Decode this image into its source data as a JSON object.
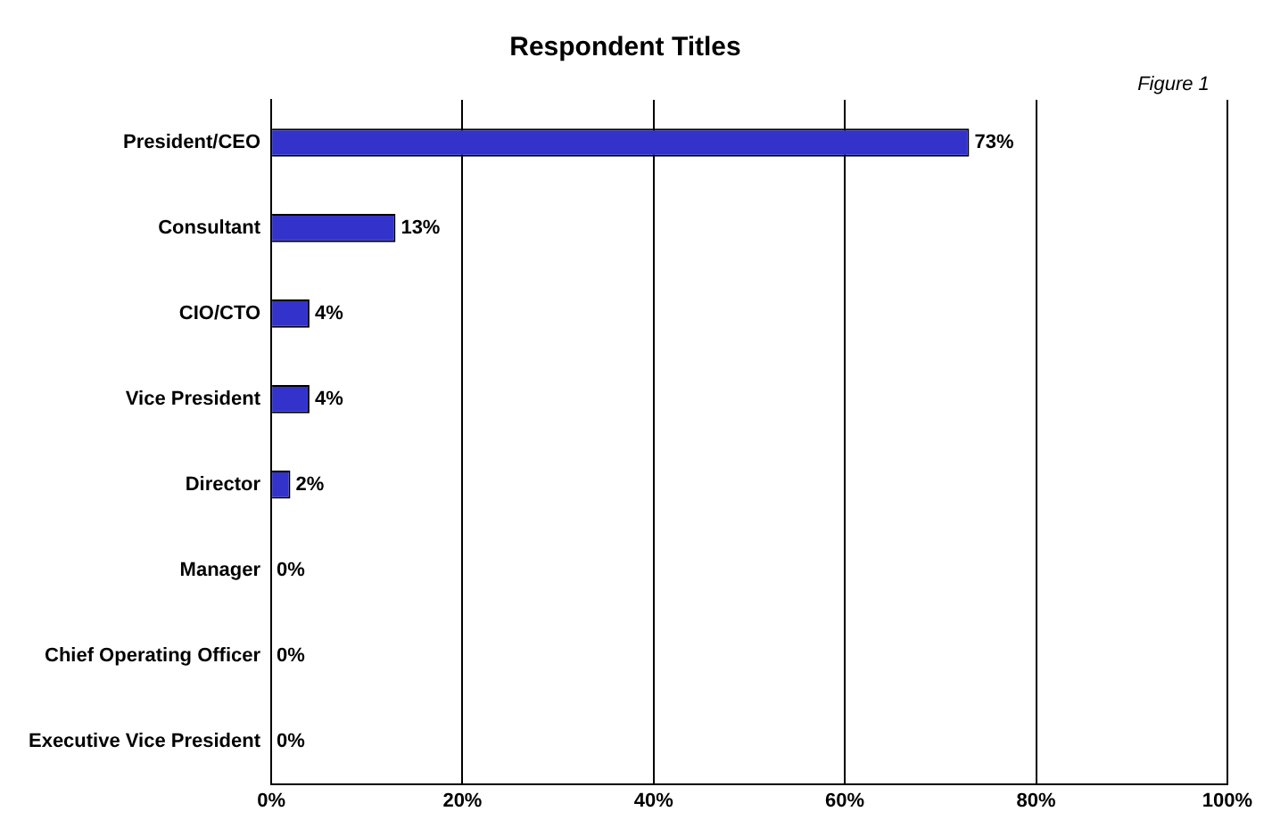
{
  "chart_data": {
    "type": "bar",
    "orientation": "horizontal",
    "title": "Respondent Titles",
    "annotations": [
      "Figure 1"
    ],
    "categories": [
      "President/CEO",
      "Consultant",
      "CIO/CTO",
      "Vice President",
      "Director",
      "Manager",
      "Chief Operating Officer",
      "Executive Vice President"
    ],
    "values": [
      73,
      13,
      4,
      4,
      2,
      0,
      0,
      0
    ],
    "value_labels": [
      "73%",
      "13%",
      "4%",
      "4%",
      "2%",
      "0%",
      "0%",
      "0%"
    ],
    "color": "#3333cc",
    "xlim": [
      0,
      100
    ],
    "xticks": [
      {
        "value": 0,
        "label": "0%"
      },
      {
        "value": 20,
        "label": "20%"
      },
      {
        "value": 40,
        "label": "40%"
      },
      {
        "value": 60,
        "label": "60%"
      },
      {
        "value": 80,
        "label": "80%"
      },
      {
        "value": 100,
        "label": "100%"
      }
    ],
    "grid": "x",
    "legend": false
  }
}
